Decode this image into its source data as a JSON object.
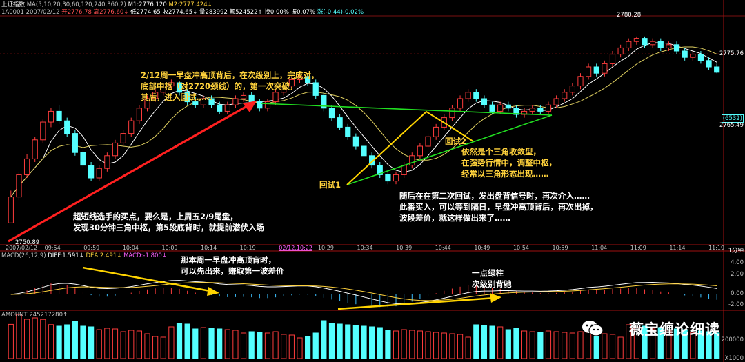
{
  "header": {
    "title": "上证指数",
    "ma_label": "MA(5,10,20,30,60,120,240,360,2)",
    "m1": "M1:2776.120",
    "m2": "M2:2777.424↓",
    "line2_code": "1A0001",
    "line2_date": "2007/02/12",
    "open": "开2776.78",
    "high": "高2776.60↓",
    "low": "低2774.65",
    "close": "收2774.65↓",
    "vol": "量283992",
    "amount": "额524522↑",
    "turnover": "换0.00%",
    "amp": "振0.07%",
    "chg": "涨(-0.44)-0.02%"
  },
  "right_axis": {
    "price_top": "2775.76",
    "price_mark": "(6532)",
    "price_mid": "2765.49",
    "macd_ticks": [
      "4.00",
      "2.00",
      "0.00",
      "-2.00"
    ],
    "vol_ticks": [
      "200000",
      "X1000"
    ],
    "period": "1分钟"
  },
  "price_labels": {
    "high_label": "2780.28",
    "low_label": "2750.89"
  },
  "x_ticks": [
    "2007/02/12",
    "09:54",
    "09:59",
    "10:04",
    "10:09",
    "10:14",
    "10:19",
    "02/12,10:22",
    "10:29",
    "10:34",
    "10:39",
    "10:44",
    "10:49",
    "10:54",
    "10:59",
    "11:04",
    "11:09",
    "11:14",
    "11:19"
  ],
  "macd_header": {
    "name": "MACD(26,12,9)",
    "diff": "DIFF:1.591↓",
    "dea": "DEA:2.491↓",
    "macd": "MACD:-1.800↓"
  },
  "amount_header": "AMOUNT 245217280↑",
  "annotations": {
    "top": "2/12周一早盘冲高顶背后，在次级别上，完成对，\n底部中枢（对2720颈线）的，第一次突破，\n其后，进入回试……",
    "left": "超短线选手的买点，要么是，上周五2/9尾盘，\n发现30分钟三角中枢，第5段底背时，就提前潜伏入场",
    "triangle": "依然是个三角收敛型，\n在强势行情中，调整中枢，\n经常以三角形态出现……",
    "test1": "回试1",
    "test2": "回试2",
    "second": "随后在在第二次回试，发出盘背信号时，再次介入……\n此番买入，可以等到隔日，早盘冲高顶背后，再次出掉，\n波段差价，就这样做出来了……",
    "macd1": "那本周一早盘冲高顶背时，\n可以先出来，赚取第一波差价",
    "macd2": "一点绿柱\n次级别背驰"
  },
  "watermark": "薇宝缠论细读",
  "colors": {
    "up": "#ff3c3c",
    "down": "#54ffff",
    "ma5": "#ffffff",
    "ma10": "#e0d060",
    "trend_line": "#ff2020",
    "triangle_line": "#21e021",
    "yellow_line": "#ffd400"
  },
  "chart_data": {
    "type": "candlestick",
    "title": "上证指数",
    "period": "1分钟",
    "ylim": [
      2748,
      2783
    ],
    "marked_values": {
      "high": 2780.28,
      "low": 2750.89
    },
    "bars": [
      [
        2750.9,
        2755.0,
        2750.9,
        2756.0
      ],
      [
        2755.0,
        2758.5,
        2754.5,
        2759.0
      ],
      [
        2758.5,
        2761.0,
        2758.0,
        2761.8
      ],
      [
        2761.0,
        2764.0,
        2760.5,
        2764.5
      ],
      [
        2764.0,
        2766.8,
        2763.5,
        2767.2
      ],
      [
        2766.8,
        2768.5,
        2766.0,
        2769.0
      ],
      [
        2768.5,
        2767.0,
        2766.5,
        2769.5
      ],
      [
        2767.0,
        2765.0,
        2764.5,
        2767.5
      ],
      [
        2765.0,
        2762.0,
        2761.5,
        2765.5
      ],
      [
        2762.0,
        2760.0,
        2759.5,
        2762.5
      ],
      [
        2760.0,
        2758.0,
        2757.5,
        2760.5
      ],
      [
        2758.0,
        2759.5,
        2757.5,
        2760.0
      ],
      [
        2759.5,
        2761.5,
        2759.0,
        2762.0
      ],
      [
        2761.5,
        2763.5,
        2761.0,
        2764.0
      ],
      [
        2763.5,
        2765.0,
        2763.0,
        2765.5
      ],
      [
        2765.0,
        2767.0,
        2764.5,
        2767.5
      ],
      [
        2767.0,
        2769.0,
        2766.5,
        2769.5
      ],
      [
        2769.0,
        2770.5,
        2768.5,
        2771.0
      ],
      [
        2770.5,
        2771.5,
        2770.0,
        2772.0
      ],
      [
        2771.5,
        2772.5,
        2771.0,
        2773.0
      ],
      [
        2772.5,
        2773.0,
        2772.0,
        2773.5
      ],
      [
        2773.0,
        2771.5,
        2771.0,
        2773.3
      ],
      [
        2771.5,
        2770.0,
        2769.5,
        2772.0
      ],
      [
        2770.0,
        2769.5,
        2769.0,
        2770.8
      ],
      [
        2769.5,
        2770.5,
        2769.0,
        2771.0
      ],
      [
        2770.5,
        2769.5,
        2769.0,
        2771.0
      ],
      [
        2769.5,
        2768.5,
        2768.0,
        2770.0
      ],
      [
        2768.5,
        2769.5,
        2768.0,
        2770.0
      ],
      [
        2769.5,
        2770.5,
        2769.0,
        2771.0
      ],
      [
        2770.5,
        2771.0,
        2770.0,
        2771.5
      ],
      [
        2771.0,
        2770.0,
        2769.5,
        2771.5
      ],
      [
        2770.0,
        2769.0,
        2768.5,
        2770.5
      ],
      [
        2769.0,
        2770.0,
        2768.5,
        2770.5
      ],
      [
        2770.0,
        2771.5,
        2769.5,
        2772.0
      ],
      [
        2771.5,
        2772.5,
        2771.0,
        2773.0
      ],
      [
        2772.5,
        2773.5,
        2772.0,
        2774.0
      ],
      [
        2773.5,
        2774.0,
        2773.0,
        2774.5
      ],
      [
        2774.0,
        2773.0,
        2772.5,
        2774.3
      ],
      [
        2773.0,
        2771.0,
        2770.5,
        2773.5
      ],
      [
        2771.0,
        2769.0,
        2768.5,
        2771.5
      ],
      [
        2769.0,
        2767.5,
        2767.0,
        2769.5
      ],
      [
        2767.5,
        2766.0,
        2765.5,
        2768.0
      ],
      [
        2766.0,
        2764.5,
        2764.0,
        2766.5
      ],
      [
        2764.5,
        2763.0,
        2762.5,
        2765.0
      ],
      [
        2763.0,
        2761.5,
        2761.0,
        2763.5
      ],
      [
        2761.5,
        2760.0,
        2759.5,
        2762.0
      ],
      [
        2760.0,
        2758.5,
        2758.0,
        2760.5
      ],
      [
        2758.5,
        2757.5,
        2757.0,
        2759.0
      ],
      [
        2757.5,
        2758.5,
        2757.0,
        2759.0
      ],
      [
        2758.5,
        2760.0,
        2758.0,
        2760.5
      ],
      [
        2760.0,
        2761.5,
        2759.5,
        2762.0
      ],
      [
        2761.5,
        2763.0,
        2761.0,
        2763.5
      ],
      [
        2763.0,
        2764.5,
        2762.5,
        2765.0
      ],
      [
        2764.5,
        2766.0,
        2764.0,
        2766.5
      ],
      [
        2766.0,
        2767.5,
        2765.5,
        2768.0
      ],
      [
        2767.5,
        2769.0,
        2767.0,
        2769.5
      ],
      [
        2769.0,
        2770.5,
        2768.5,
        2771.0
      ],
      [
        2770.5,
        2771.5,
        2770.0,
        2772.0
      ],
      [
        2771.5,
        2770.5,
        2770.0,
        2772.0
      ],
      [
        2770.5,
        2769.5,
        2769.0,
        2771.0
      ],
      [
        2769.5,
        2768.5,
        2768.0,
        2770.0
      ],
      [
        2768.5,
        2769.5,
        2768.0,
        2770.0
      ],
      [
        2769.5,
        2769.0,
        2768.5,
        2770.0
      ],
      [
        2769.0,
        2768.0,
        2767.5,
        2769.5
      ],
      [
        2768.0,
        2768.5,
        2767.5,
        2769.0
      ],
      [
        2768.5,
        2769.0,
        2768.0,
        2769.5
      ],
      [
        2769.0,
        2768.5,
        2768.0,
        2769.5
      ],
      [
        2768.5,
        2769.5,
        2768.0,
        2770.0
      ],
      [
        2769.5,
        2770.5,
        2769.0,
        2771.0
      ],
      [
        2770.5,
        2771.5,
        2770.0,
        2772.0
      ],
      [
        2771.5,
        2772.5,
        2771.0,
        2773.0
      ],
      [
        2772.5,
        2774.0,
        2772.0,
        2774.5
      ],
      [
        2774.0,
        2775.5,
        2773.5,
        2776.0
      ],
      [
        2775.5,
        2774.5,
        2774.0,
        2776.0
      ],
      [
        2774.5,
        2776.0,
        2774.0,
        2776.5
      ],
      [
        2776.0,
        2777.5,
        2775.5,
        2778.0
      ],
      [
        2777.5,
        2778.5,
        2777.0,
        2779.0
      ],
      [
        2778.5,
        2779.5,
        2778.0,
        2780.0
      ],
      [
        2779.5,
        2780.0,
        2779.0,
        2780.3
      ],
      [
        2780.0,
        2779.0,
        2778.5,
        2780.3
      ],
      [
        2779.0,
        2779.5,
        2778.5,
        2780.0
      ],
      [
        2779.5,
        2778.5,
        2778.0,
        2780.0
      ],
      [
        2778.5,
        2779.0,
        2778.0,
        2779.5
      ],
      [
        2779.0,
        2778.0,
        2777.5,
        2779.5
      ],
      [
        2778.0,
        2777.0,
        2776.5,
        2778.5
      ],
      [
        2777.0,
        2777.5,
        2776.5,
        2778.0
      ],
      [
        2777.5,
        2776.5,
        2776.0,
        2778.0
      ],
      [
        2776.5,
        2775.5,
        2775.0,
        2777.0
      ],
      [
        2775.5,
        2774.65,
        2774.5,
        2776.0
      ]
    ]
  }
}
